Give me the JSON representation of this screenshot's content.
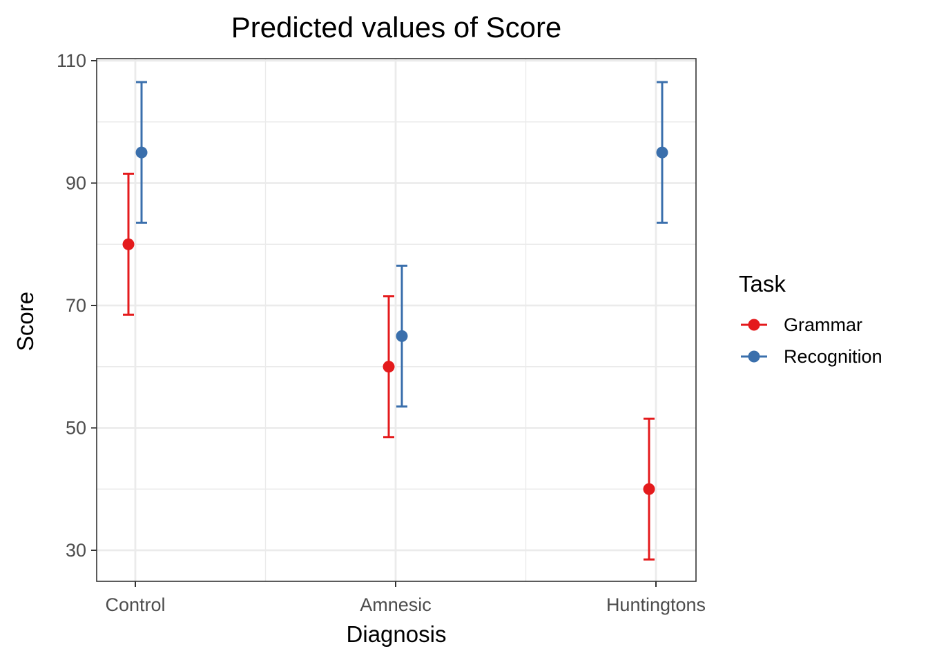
{
  "chart_data": {
    "type": "scatter",
    "title": "Predicted values of Score",
    "xlabel": "Diagnosis",
    "ylabel": "Score",
    "categories": [
      "Control",
      "Amnesic",
      "Huntingtons"
    ],
    "ylim": [
      25,
      110
    ],
    "yticks": [
      30,
      50,
      70,
      90,
      110
    ],
    "grid": true,
    "legend": {
      "title": "Task",
      "placement": "right"
    },
    "series": [
      {
        "name": "Grammar",
        "color": "#e41a1c",
        "values": [
          80,
          60,
          40
        ],
        "lower": [
          68.5,
          48.5,
          28.5
        ],
        "upper": [
          91.5,
          71.5,
          51.5
        ]
      },
      {
        "name": "Recognition",
        "color": "#3a6fac",
        "values": [
          95,
          65,
          95
        ],
        "lower": [
          83.5,
          53.5,
          83.5
        ],
        "upper": [
          106.5,
          76.5,
          106.5
        ]
      }
    ]
  }
}
